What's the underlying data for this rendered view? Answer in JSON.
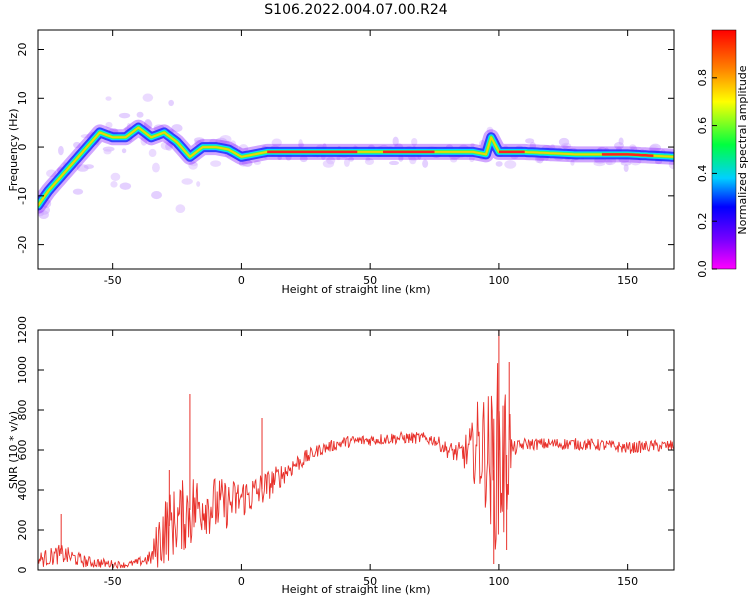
{
  "title": "S106.2022.004.07.00.R24",
  "colors": {
    "snr_line": "#e8302a",
    "background": "#ffffff",
    "colorbar": [
      "#ff00ff",
      "#7a00ff",
      "#0000ff",
      "#00ffff",
      "#00ff40",
      "#ffff00",
      "#ff8000",
      "#ff0000"
    ]
  },
  "chart_data": [
    {
      "type": "heatmap",
      "xlabel": "Height of straight line (km)",
      "ylabel": "Frequency (Hz)",
      "xlim": [
        -79,
        168
      ],
      "ylim": [
        -25,
        24
      ],
      "xticks": [
        -50,
        0,
        50,
        100,
        150
      ],
      "yticks": [
        -20,
        -10,
        0,
        10,
        20
      ],
      "colorbar": {
        "label": "Normalized spectral amplitude",
        "range": [
          0.0,
          1.0
        ],
        "ticks": [
          0.0,
          0.2,
          0.4,
          0.6,
          0.8
        ]
      },
      "ridge": {
        "x": [
          -79,
          -75,
          -70,
          -65,
          -60,
          -55,
          -50,
          -45,
          -40,
          -35,
          -30,
          -25,
          -20,
          -15,
          -10,
          -5,
          0,
          5,
          10,
          20,
          40,
          60,
          75,
          85,
          90,
          95,
          97,
          100,
          110,
          130,
          150,
          168
        ],
        "freq": [
          -12,
          -9,
          -6,
          -3,
          0,
          3,
          2,
          2,
          4,
          2,
          3,
          1,
          -2,
          0,
          0,
          -0.5,
          -2,
          -1.5,
          -1,
          -1,
          -1,
          -1,
          -1,
          -1,
          -1,
          -1.5,
          2,
          -1,
          -1,
          -1.5,
          -1.5,
          -2
        ]
      }
    },
    {
      "type": "line",
      "xlabel": "Height of straight line (km)",
      "ylabel": "SNR (10 * v/v)",
      "xlim": [
        -79,
        168
      ],
      "ylim": [
        0,
        1200
      ],
      "xticks": [
        -50,
        0,
        50,
        100,
        150
      ],
      "yticks": [
        0,
        200,
        400,
        600,
        800,
        1000,
        1200
      ],
      "envelope": {
        "x": [
          -79,
          -70,
          -60,
          -50,
          -45,
          -40,
          -35,
          -32,
          -30,
          -25,
          -20,
          -15,
          -10,
          -5,
          0,
          5,
          10,
          15,
          20,
          25,
          30,
          40,
          50,
          60,
          70,
          75,
          80,
          85,
          90,
          92,
          95,
          98,
          100,
          102,
          104,
          105,
          110,
          120,
          130,
          140,
          150,
          160,
          168
        ],
        "mean": [
          50,
          80,
          40,
          30,
          25,
          40,
          60,
          150,
          200,
          250,
          300,
          330,
          320,
          330,
          360,
          380,
          420,
          470,
          520,
          560,
          600,
          640,
          650,
          660,
          660,
          650,
          600,
          580,
          600,
          620,
          600,
          500,
          600,
          500,
          650,
          600,
          630,
          630,
          630,
          625,
          610,
          620,
          620
        ],
        "noise": [
          40,
          50,
          30,
          20,
          15,
          20,
          40,
          150,
          180,
          170,
          200,
          150,
          150,
          120,
          100,
          100,
          80,
          60,
          50,
          40,
          30,
          30,
          30,
          30,
          30,
          30,
          40,
          60,
          150,
          250,
          300,
          400,
          500,
          450,
          300,
          40,
          30,
          30,
          30,
          30,
          30,
          30,
          30
        ]
      },
      "spikes": [
        {
          "x": -20,
          "y": 880
        },
        {
          "x": 8,
          "y": 760
        },
        {
          "x": -28,
          "y": 500
        },
        {
          "x": 100,
          "y": 1200
        },
        {
          "x": 98,
          "y": 30
        },
        {
          "x": 104,
          "y": 1040
        },
        {
          "x": 103,
          "y": 100
        },
        {
          "x": -70,
          "y": 280
        }
      ]
    }
  ]
}
